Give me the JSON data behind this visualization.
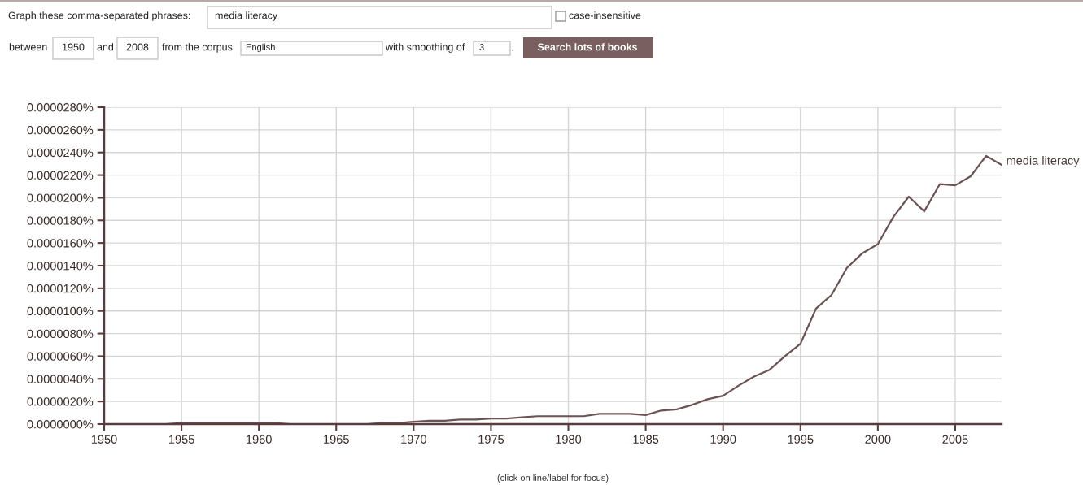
{
  "chart_data": {
    "type": "line",
    "annotations": [
      "Graph these comma-separated phrases:",
      "media literacy",
      "case-insensitive",
      "between",
      "1950",
      "and",
      "2008",
      "from the corpus",
      "English",
      "with smoothing of",
      "3",
      ".",
      "Search lots of books",
      "(click on line/label for focus)"
    ],
    "x": [
      1950,
      1951,
      1952,
      1953,
      1954,
      1955,
      1956,
      1957,
      1958,
      1959,
      1960,
      1961,
      1962,
      1963,
      1964,
      1965,
      1966,
      1967,
      1968,
      1969,
      1970,
      1971,
      1972,
      1973,
      1974,
      1975,
      1976,
      1977,
      1978,
      1979,
      1980,
      1981,
      1982,
      1983,
      1984,
      1985,
      1986,
      1987,
      1988,
      1989,
      1990,
      1991,
      1992,
      1993,
      1994,
      1995,
      1996,
      1997,
      1998,
      1999,
      2000,
      2001,
      2002,
      2003,
      2004,
      2005,
      2006,
      2007,
      2008
    ],
    "series": [
      {
        "name": "media literacy",
        "color": "#6b5254",
        "values": [
          0,
          0,
          0,
          0,
          0,
          1e-07,
          1e-07,
          1e-07,
          1e-07,
          1e-07,
          1e-07,
          1e-07,
          0,
          0,
          0,
          0,
          0,
          0,
          1e-07,
          1e-07,
          2e-07,
          3e-07,
          3e-07,
          4e-07,
          4e-07,
          5e-07,
          5e-07,
          6e-07,
          7e-07,
          7e-07,
          7e-07,
          7e-07,
          9e-07,
          9e-07,
          9e-07,
          8e-07,
          1.2e-06,
          1.3e-06,
          1.7e-06,
          2.2e-06,
          2.5e-06,
          3.4e-06,
          4.2e-06,
          4.8e-06,
          6e-06,
          7.1e-06,
          1.02e-05,
          1.14e-05,
          1.38e-05,
          1.51e-05,
          1.59e-05,
          1.83e-05,
          2.01e-05,
          1.88e-05,
          2.12e-05,
          2.11e-05,
          2.19e-05,
          2.37e-05,
          2.29e-05
        ]
      }
    ],
    "xlim": [
      1950,
      2008
    ],
    "xticks": [
      1950,
      1955,
      1960,
      1965,
      1970,
      1975,
      1980,
      1985,
      1990,
      1995,
      2000,
      2005
    ],
    "ylim": [
      0,
      2.8e-05
    ],
    "yticks": [
      {
        "value": 0,
        "label": "0.0000000%"
      },
      {
        "value": 2e-06,
        "label": "0.0000020%"
      },
      {
        "value": 4e-06,
        "label": "0.0000040%"
      },
      {
        "value": 6e-06,
        "label": "0.0000060%"
      },
      {
        "value": 8e-06,
        "label": "0.0000080%"
      },
      {
        "value": 1e-05,
        "label": "0.0000100%"
      },
      {
        "value": 1.2e-05,
        "label": "0.0000120%"
      },
      {
        "value": 1.4e-05,
        "label": "0.0000140%"
      },
      {
        "value": 1.6e-05,
        "label": "0.0000160%"
      },
      {
        "value": 1.8e-05,
        "label": "0.0000180%"
      },
      {
        "value": 2e-05,
        "label": "0.0000200%"
      },
      {
        "value": 2.2e-05,
        "label": "0.0000220%"
      },
      {
        "value": 2.4e-05,
        "label": "0.0000240%"
      },
      {
        "value": 2.6e-05,
        "label": "0.0000260%"
      },
      {
        "value": 2.8e-05,
        "label": "0.0000280%"
      }
    ],
    "grid": true,
    "legend": false,
    "marker": "none",
    "line_style": "solid"
  }
}
